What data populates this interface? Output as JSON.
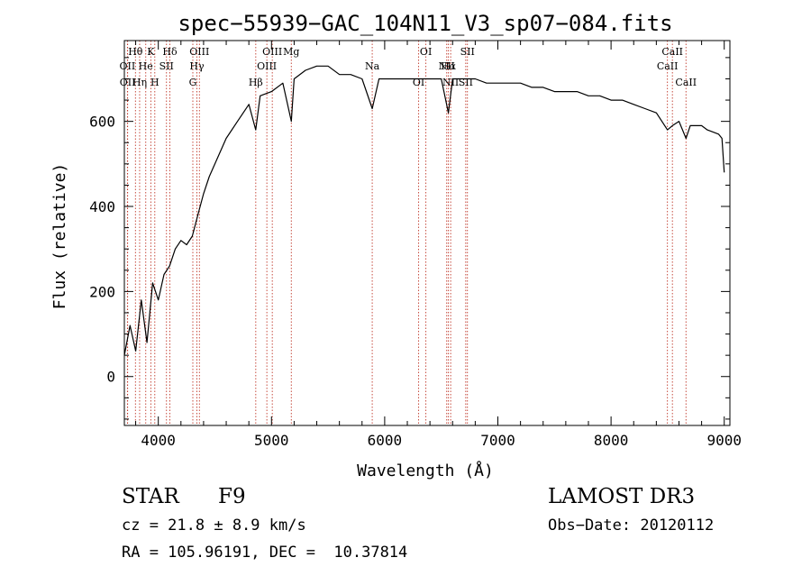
{
  "chart_data": {
    "type": "line",
    "title": "spec−55939−GAC_104N11_V3_sp07−084.fits",
    "xlabel": "Wavelength (Å)",
    "ylabel": "Flux (relative)",
    "xlim": [
      3700,
      9050
    ],
    "ylim": [
      -115,
      790
    ],
    "xticks": [
      4000,
      5000,
      6000,
      7000,
      8000,
      9000
    ],
    "yticks": [
      0,
      200,
      400,
      600
    ],
    "xtick_labels": [
      "4000",
      "5000",
      "6000",
      "7000",
      "8000",
      "9000"
    ],
    "ytick_labels": [
      "0",
      "200",
      "400",
      "600"
    ],
    "grid": false,
    "series": [
      {
        "name": "flux",
        "x": [
          3700,
          3750,
          3800,
          3850,
          3900,
          3950,
          4000,
          4050,
          4100,
          4150,
          4200,
          4250,
          4300,
          4350,
          4400,
          4450,
          4500,
          4600,
          4700,
          4800,
          4861,
          4900,
          5000,
          5100,
          5175,
          5200,
          5300,
          5400,
          5500,
          5600,
          5700,
          5800,
          5890,
          5950,
          6000,
          6100,
          6200,
          6300,
          6400,
          6500,
          6563,
          6600,
          6700,
          6800,
          6900,
          7000,
          7100,
          7200,
          7300,
          7400,
          7500,
          7600,
          7700,
          7800,
          7900,
          8000,
          8100,
          8200,
          8300,
          8400,
          8498,
          8542,
          8600,
          8662,
          8700,
          8800,
          8850,
          8900,
          8950,
          8980,
          9000
        ],
        "y": [
          50,
          120,
          60,
          180,
          80,
          220,
          180,
          240,
          260,
          300,
          320,
          310,
          330,
          380,
          430,
          470,
          500,
          560,
          600,
          640,
          580,
          660,
          670,
          690,
          600,
          700,
          720,
          730,
          730,
          710,
          710,
          700,
          630,
          700,
          700,
          700,
          700,
          700,
          700,
          700,
          620,
          700,
          700,
          700,
          690,
          690,
          690,
          690,
          680,
          680,
          670,
          670,
          670,
          660,
          660,
          650,
          650,
          640,
          630,
          620,
          580,
          590,
          600,
          560,
          590,
          590,
          580,
          575,
          570,
          560,
          480
        ]
      }
    ],
    "lines": [
      {
        "label": "Hθ",
        "x": 3798
      },
      {
        "label": "OII",
        "x": 3727
      },
      {
        "label": "OII",
        "x": 3729
      },
      {
        "label": "K",
        "x": 3934
      },
      {
        "label": "He",
        "x": 3889
      },
      {
        "label": "Hη",
        "x": 3835
      },
      {
        "label": "Hδ",
        "x": 4102
      },
      {
        "label": "SII",
        "x": 4072
      },
      {
        "label": "H",
        "x": 3969
      },
      {
        "label": "OIII",
        "x": 4363
      },
      {
        "label": "Hγ",
        "x": 4341
      },
      {
        "label": "G",
        "x": 4305
      },
      {
        "label": "OIII",
        "x": 5007
      },
      {
        "label": "OIII",
        "x": 4959
      },
      {
        "label": "Hβ",
        "x": 4861
      },
      {
        "label": "Mg",
        "x": 5175
      },
      {
        "label": "Na",
        "x": 5890
      },
      {
        "label": "OI",
        "x": 6300
      },
      {
        "label": "OI",
        "x": 6364
      },
      {
        "label": "Hα",
        "x": 6563
      },
      {
        "label": "SII",
        "x": 6716
      },
      {
        "label": "SII",
        "x": 6731
      },
      {
        "label": "NII",
        "x": 6548
      },
      {
        "label": "NII",
        "x": 6583
      },
      {
        "label": "CaII",
        "x": 8542
      },
      {
        "label": "CaII",
        "x": 8498
      },
      {
        "label": "CaII",
        "x": 8662
      }
    ]
  },
  "info": {
    "object_class": "STAR",
    "subclass": "F9",
    "survey": "LAMOST DR3",
    "cz": "cz = 21.8 ± 8.9 km/s",
    "obs_date": "Obs−Date: 20120112",
    "coords": "RA = 105.96191, DEC =  10.37814"
  }
}
